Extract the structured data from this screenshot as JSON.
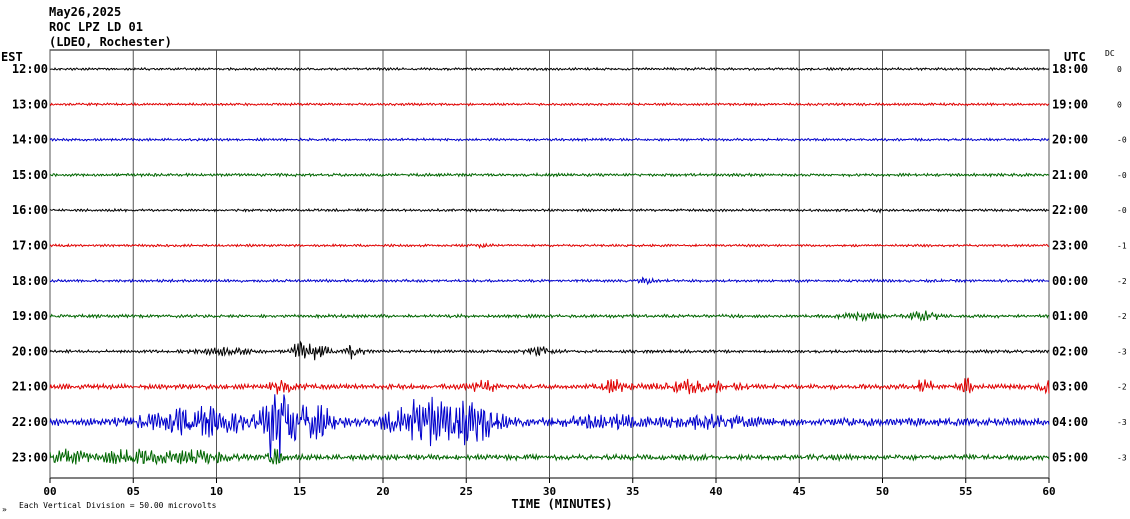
{
  "header": {
    "date": "May26,2025",
    "station": "ROC LPZ LD 01",
    "network": "(LDEO, Rochester)"
  },
  "left_zone": "EST",
  "right_zone": "UTC",
  "dc_label": "DC",
  "xlabel": "TIME (MINUTES)",
  "footer": {
    "marker": "»",
    "scale_text": "Each Vertical Division =   50.00 microvolts"
  },
  "chart_data": {
    "type": "line",
    "title": "ROC LPZ LD 01",
    "xlabel": "TIME (MINUTES)",
    "ylabel": "",
    "xlim": [
      0,
      60
    ],
    "x_ticks": [
      "00",
      "05",
      "10",
      "15",
      "20",
      "25",
      "30",
      "35",
      "40",
      "45",
      "50",
      "55",
      "60"
    ],
    "grid": true,
    "trace_colors": [
      "#000000",
      "#e00000",
      "#0000cc",
      "#006600"
    ],
    "series": [
      {
        "left_time": "12:00",
        "right_time": "18:00",
        "dc": "0",
        "amplitude": 1,
        "events": []
      },
      {
        "left_time": "13:00",
        "right_time": "19:00",
        "dc": "0",
        "amplitude": 1,
        "events": []
      },
      {
        "left_time": "14:00",
        "right_time": "20:00",
        "dc": "-0",
        "amplitude": 1,
        "events": []
      },
      {
        "left_time": "15:00",
        "right_time": "21:00",
        "dc": "-0",
        "amplitude": 1.2,
        "events": []
      },
      {
        "left_time": "16:00",
        "right_time": "22:00",
        "dc": "-0",
        "amplitude": 1,
        "events": [
          {
            "t": 49.7,
            "a": 2,
            "d": 0.3
          }
        ]
      },
      {
        "left_time": "17:00",
        "right_time": "23:00",
        "dc": "-1",
        "amplitude": 1,
        "events": [
          {
            "t": 26,
            "a": 2,
            "d": 0.4
          }
        ]
      },
      {
        "left_time": "18:00",
        "right_time": "00:00",
        "dc": "-2",
        "amplitude": 1.1,
        "events": [
          {
            "t": 35.8,
            "a": 2.5,
            "d": 0.4
          }
        ]
      },
      {
        "left_time": "19:00",
        "right_time": "01:00",
        "dc": "-2",
        "amplitude": 1.3,
        "events": [
          {
            "t": 48.5,
            "a": 3,
            "d": 1
          },
          {
            "t": 52.5,
            "a": 3,
            "d": 1
          }
        ]
      },
      {
        "left_time": "20:00",
        "right_time": "02:00",
        "dc": "-3",
        "amplitude": 1.2,
        "events": [
          {
            "t": 10.5,
            "a": 3,
            "d": 1.5
          },
          {
            "t": 15,
            "a": 10,
            "d": 0.4
          },
          {
            "t": 16,
            "a": 6,
            "d": 0.8
          },
          {
            "t": 18.3,
            "a": 6,
            "d": 0.5
          },
          {
            "t": 29.5,
            "a": 3,
            "d": 0.8
          }
        ]
      },
      {
        "left_time": "21:00",
        "right_time": "03:00",
        "dc": "-2",
        "amplitude": 2,
        "events": [
          {
            "t": 14,
            "a": 5,
            "d": 1
          },
          {
            "t": 26,
            "a": 5,
            "d": 0.8
          },
          {
            "t": 34,
            "a": 5,
            "d": 0.8
          },
          {
            "t": 39,
            "a": 5,
            "d": 2
          },
          {
            "t": 52.5,
            "a": 9,
            "d": 0.4
          },
          {
            "t": 55,
            "a": 7,
            "d": 0.4
          },
          {
            "t": 59.8,
            "a": 7,
            "d": 0.4
          }
        ]
      },
      {
        "left_time": "22:00",
        "right_time": "04:00",
        "dc": "-3",
        "amplitude": 3.2,
        "events": [
          {
            "t": 9,
            "a": 10,
            "d": 3
          },
          {
            "t": 13.6,
            "a": 30,
            "d": 0.7
          },
          {
            "t": 15.5,
            "a": 16,
            "d": 1.5
          },
          {
            "t": 22.5,
            "a": 18,
            "d": 2
          },
          {
            "t": 25.5,
            "a": 14,
            "d": 1.5
          },
          {
            "t": 34,
            "a": 4,
            "d": 3
          },
          {
            "t": 40,
            "a": 4,
            "d": 2
          }
        ]
      },
      {
        "left_time": "23:00",
        "right_time": "05:00",
        "dc": "-3",
        "amplitude": 2.2,
        "events": [
          {
            "t": 1,
            "a": 6,
            "d": 1
          },
          {
            "t": 5,
            "a": 5,
            "d": 2
          },
          {
            "t": 9,
            "a": 4,
            "d": 2
          },
          {
            "t": 13.5,
            "a": 6,
            "d": 0.5
          }
        ]
      }
    ]
  }
}
